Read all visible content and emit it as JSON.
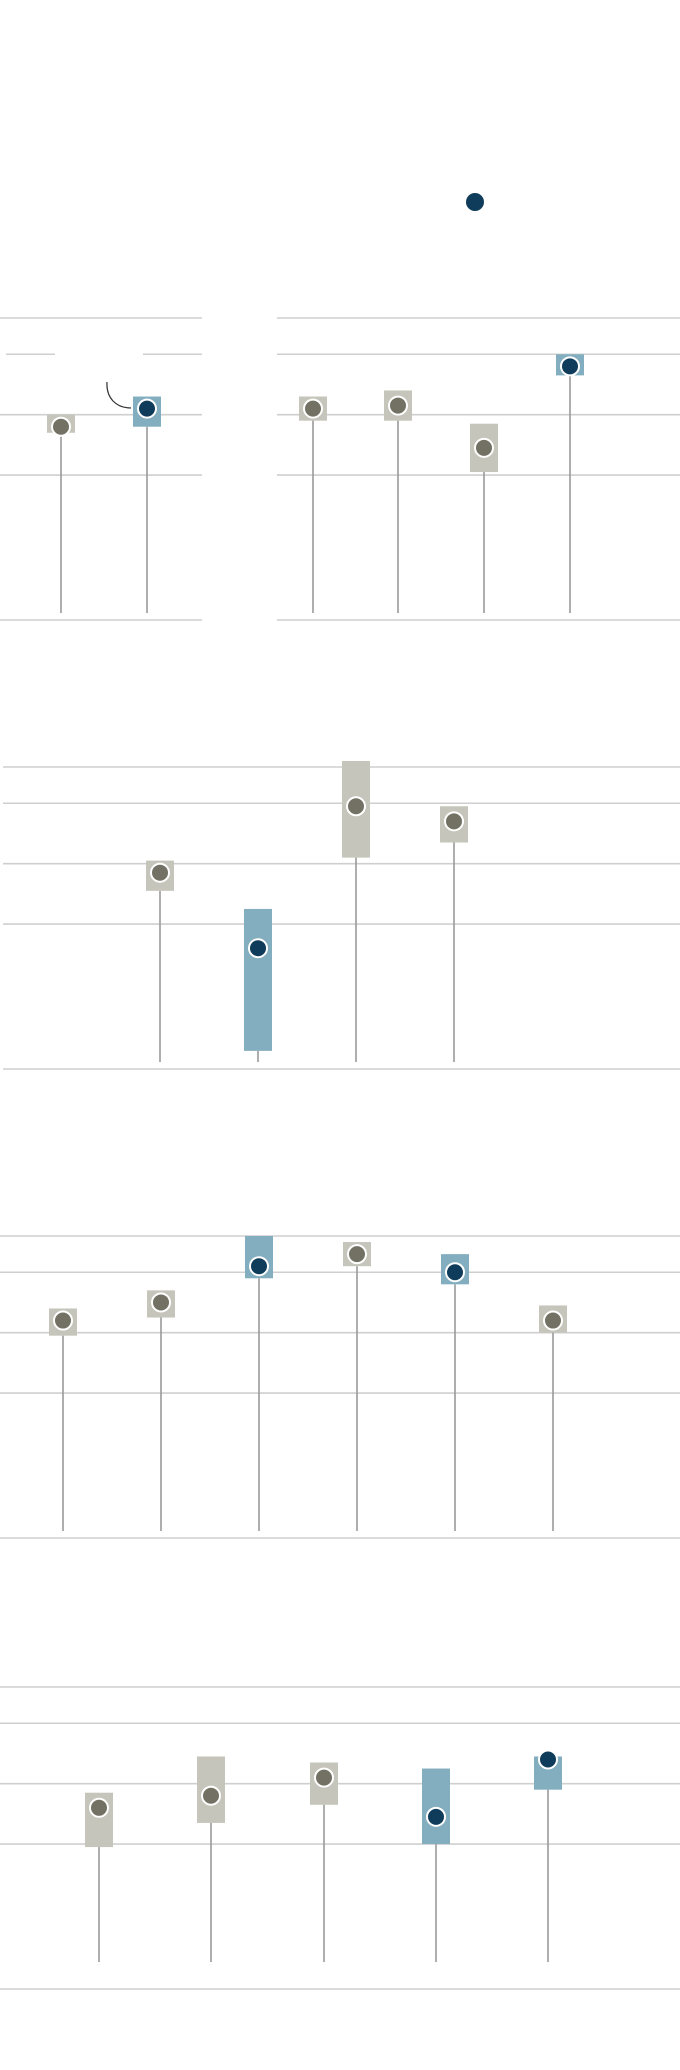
{
  "colors": {
    "highlight_dot": "#0f3c5a",
    "highlight_range": "#83aec0",
    "normal_dot": "#727163",
    "normal_range": "#c5c5bb",
    "grid": "#cfcfcf",
    "stem": "#9a9a9a",
    "background": "#ffffff"
  },
  "legend_dot": {
    "highlight": true
  },
  "chart_data": [
    {
      "type": "scatter",
      "title": "",
      "xlabel": "",
      "ylabel": "",
      "ylim": [
        0,
        100
      ],
      "grid_values": [
        100,
        88,
        68,
        48,
        0
      ],
      "points": [
        {
          "value": 64,
          "range": [
            62,
            68
          ],
          "highlight": false
        },
        {
          "value": 70,
          "range": [
            64,
            74
          ],
          "highlight": true
        }
      ]
    },
    {
      "type": "scatter",
      "title": "",
      "xlabel": "",
      "ylabel": "",
      "ylim": [
        0,
        100
      ],
      "grid_values": [
        100,
        88,
        68,
        48,
        0
      ],
      "points": [
        {
          "value": 70,
          "range": [
            66,
            74
          ],
          "highlight": false
        },
        {
          "value": 71,
          "range": [
            66,
            76
          ],
          "highlight": false
        },
        {
          "value": 57,
          "range": [
            49,
            65
          ],
          "highlight": false
        },
        {
          "value": 84,
          "range": [
            81,
            88
          ],
          "highlight": true
        }
      ]
    },
    {
      "type": "scatter",
      "title": "",
      "xlabel": "",
      "ylabel": "",
      "ylim": [
        0,
        100
      ],
      "grid_values": [
        100,
        88,
        68,
        48,
        0
      ],
      "points": [
        {
          "value": 65,
          "range": [
            59,
            69
          ],
          "highlight": false
        },
        {
          "value": 40,
          "range": [
            6,
            53
          ],
          "highlight": true
        },
        {
          "value": 87,
          "range": [
            70,
            102
          ],
          "highlight": false
        },
        {
          "value": 82,
          "range": [
            75,
            87
          ],
          "highlight": false
        }
      ]
    },
    {
      "type": "scatter",
      "title": "",
      "xlabel": "",
      "ylabel": "",
      "ylim": [
        0,
        100
      ],
      "grid_values": [
        100,
        88,
        68,
        48,
        0
      ],
      "points": [
        {
          "value": 72,
          "range": [
            67,
            76
          ],
          "highlight": false
        },
        {
          "value": 78,
          "range": [
            73,
            82
          ],
          "highlight": false
        },
        {
          "value": 90,
          "range": [
            86,
            100
          ],
          "highlight": true
        },
        {
          "value": 94,
          "range": [
            90,
            98
          ],
          "highlight": false
        },
        {
          "value": 88,
          "range": [
            84,
            94
          ],
          "highlight": true
        },
        {
          "value": 72,
          "range": [
            68,
            77
          ],
          "highlight": false
        }
      ]
    },
    {
      "type": "scatter",
      "title": "",
      "xlabel": "",
      "ylabel": "",
      "ylim": [
        0,
        100
      ],
      "grid_values": [
        100,
        88,
        68,
        48,
        0
      ],
      "points": [
        {
          "value": 60,
          "range": [
            47,
            65
          ],
          "highlight": false
        },
        {
          "value": 64,
          "range": [
            55,
            77
          ],
          "highlight": false
        },
        {
          "value": 70,
          "range": [
            61,
            75
          ],
          "highlight": false
        },
        {
          "value": 57,
          "range": [
            48,
            73
          ],
          "highlight": true
        },
        {
          "value": 76,
          "range": [
            66,
            77
          ],
          "highlight": true
        }
      ]
    }
  ]
}
